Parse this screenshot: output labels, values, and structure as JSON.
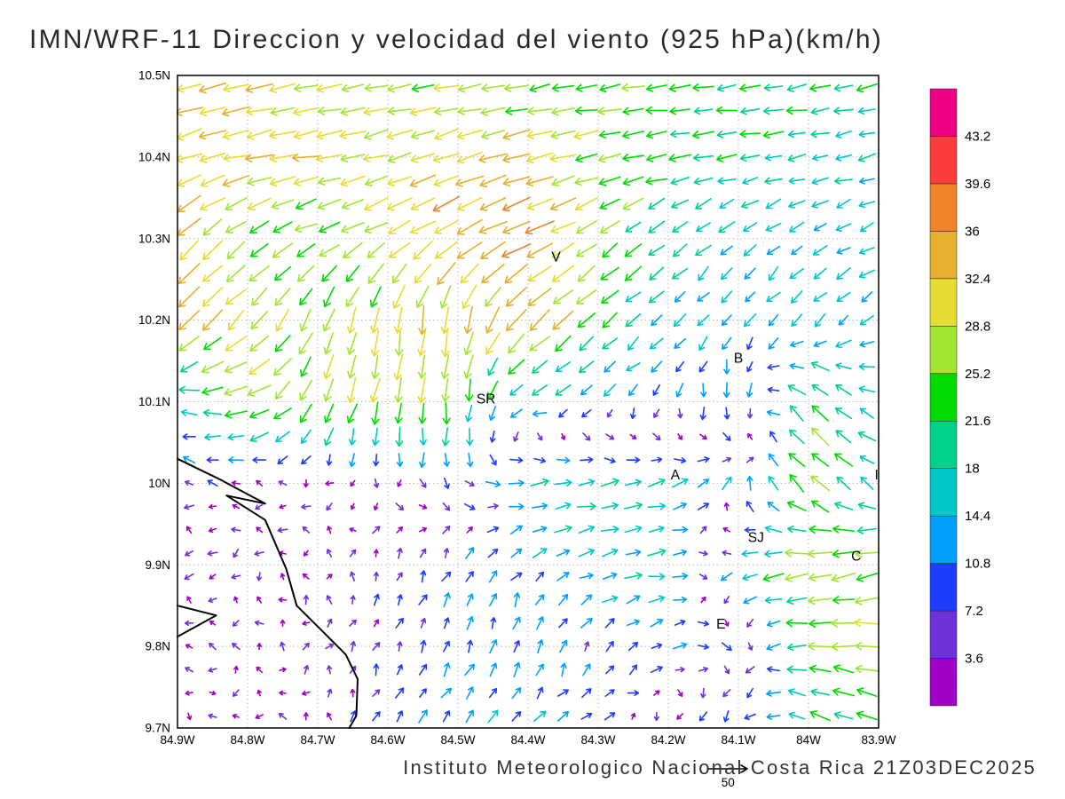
{
  "chart_data": {
    "type": "quiver",
    "title": "IMN/WRF-11 Direccion y velocidad del viento (925 hPa)(km/h)",
    "footer": "Instituto Meteorologico Nacional Costa Rica 21Z03DEC2025",
    "units": "km/h",
    "x_ticks": [
      "84.9W",
      "84.8W",
      "84.7W",
      "84.6W",
      "84.5W",
      "84.4W",
      "84.3W",
      "84.2W",
      "84.1W",
      "84W",
      "83.9W"
    ],
    "y_ticks": [
      "10.5N",
      "10.4N",
      "10.3N",
      "10.2N",
      "10.1N",
      "10N",
      "9.9N",
      "9.8N",
      "9.7N"
    ],
    "x_range": [
      -84.9,
      -83.9
    ],
    "y_range": [
      9.7,
      10.5
    ],
    "grid": "dotted",
    "legend_position": "right",
    "reference": {
      "label": "50"
    },
    "colorbar": {
      "labels": [
        "43.2",
        "39.6",
        "36",
        "32.4",
        "28.8",
        "25.2",
        "21.6",
        "18",
        "14.4",
        "10.8",
        "7.2",
        "3.6"
      ],
      "levels": [
        3.6,
        7.2,
        10.8,
        14.4,
        18,
        21.6,
        25.2,
        28.8,
        32.4,
        36,
        39.6,
        43.2
      ],
      "colors": [
        "#a000c8",
        "#6e32dc",
        "#1e3cff",
        "#00a0ff",
        "#00c8c8",
        "#00d28c",
        "#00dc00",
        "#a0e632",
        "#e6dc32",
        "#e6af2d",
        "#f08228",
        "#fa3c3c",
        "#f00082"
      ]
    },
    "stations": [
      {
        "label": "V",
        "lon": -84.36,
        "lat": 10.272
      },
      {
        "label": "B",
        "lon": -84.1,
        "lat": 10.148
      },
      {
        "label": "SR",
        "lon": -84.46,
        "lat": 10.098
      },
      {
        "label": "A",
        "lon": -84.19,
        "lat": 10.005
      },
      {
        "label": "I",
        "lon": -83.903,
        "lat": 10.005
      },
      {
        "label": "SJ",
        "lon": -84.075,
        "lat": 9.928
      },
      {
        "label": "C",
        "lon": -83.932,
        "lat": 9.905
      },
      {
        "label": "E",
        "lon": -84.125,
        "lat": 9.822
      }
    ],
    "coastlines": [
      [
        [
          -84.9,
          10.03
        ],
        [
          -84.84,
          10.005
        ],
        [
          -84.775,
          9.975
        ],
        [
          -84.83,
          9.985
        ],
        [
          -84.775,
          9.955
        ],
        [
          -84.745,
          9.895
        ],
        [
          -84.73,
          9.85
        ],
        [
          -84.695,
          9.82
        ],
        [
          -84.66,
          9.79
        ],
        [
          -84.643,
          9.76
        ],
        [
          -84.645,
          9.715
        ],
        [
          -84.655,
          9.7
        ]
      ],
      [
        [
          -84.9,
          9.85
        ],
        [
          -84.845,
          9.838
        ],
        [
          -84.9,
          9.812
        ]
      ]
    ],
    "wind_grid": {
      "lon0": -84.9,
      "dlon": 0.1,
      "nlon": 11,
      "lat0": 10.5,
      "dlat": -0.1,
      "nlat": 9,
      "u": [
        [
          -30,
          -30,
          -28,
          -26,
          -25,
          -24,
          -23,
          -22,
          -22,
          -21,
          -20
        ],
        [
          -30,
          -32,
          -30,
          -28,
          -30,
          -32,
          -26,
          -22,
          -20,
          -17,
          -15
        ],
        [
          -25,
          -20,
          -22,
          -25,
          -30,
          -35,
          -20,
          -15,
          -12,
          -13,
          -14
        ],
        [
          -25,
          -20,
          -10,
          -5,
          -5,
          -25,
          -18,
          -12,
          -8,
          -10,
          -12
        ],
        [
          -15,
          -30,
          -10,
          -5,
          -2,
          -15,
          -8,
          -5,
          3,
          -20,
          -15
        ],
        [
          -5,
          -4,
          -3,
          2,
          3,
          18,
          18,
          15,
          5,
          -20,
          -12
        ],
        [
          -4,
          -3,
          -2,
          2,
          5,
          8,
          15,
          18,
          -15,
          -28,
          -25
        ],
        [
          -3,
          -2,
          2,
          3,
          4,
          3,
          5,
          10,
          5,
          -25,
          -28
        ],
        [
          -2,
          -2,
          -2,
          5,
          8,
          10,
          8,
          -3,
          -8,
          -18,
          -20
        ]
      ],
      "v": [
        [
          -8,
          -8,
          -6,
          -4,
          -3,
          -3,
          -3,
          -2,
          -2,
          -3,
          -4
        ],
        [
          -10,
          -6,
          -5,
          -8,
          -10,
          -8,
          -6,
          -4,
          -3,
          -3,
          -4
        ],
        [
          -25,
          -15,
          -10,
          -15,
          -18,
          -15,
          -15,
          -12,
          -10,
          -8,
          -6
        ],
        [
          -25,
          -20,
          -25,
          -30,
          -32,
          -25,
          -15,
          -10,
          -10,
          -12,
          -8
        ],
        [
          5,
          -8,
          -25,
          -28,
          -25,
          -5,
          -8,
          -8,
          -15,
          20,
          5
        ],
        [
          2,
          2,
          -2,
          -4,
          -8,
          2,
          3,
          5,
          10,
          18,
          8
        ],
        [
          -2,
          -3,
          3,
          6,
          10,
          8,
          5,
          2,
          -5,
          -5,
          -8
        ],
        [
          2,
          2,
          3,
          6,
          10,
          12,
          8,
          5,
          -5,
          0,
          3
        ],
        [
          -2,
          -2,
          2,
          8,
          10,
          8,
          5,
          -5,
          -8,
          10,
          8
        ]
      ]
    }
  }
}
